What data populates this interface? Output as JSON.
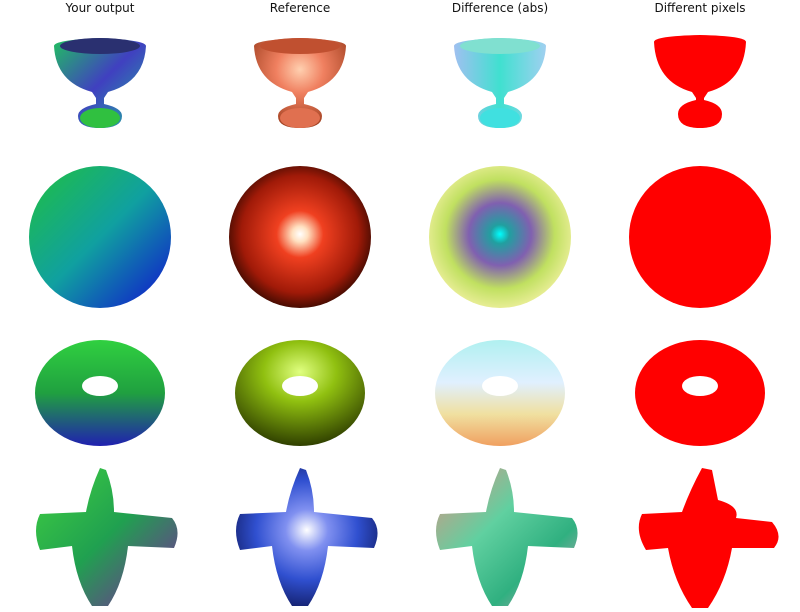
{
  "headers": {
    "output": "Your output",
    "reference": "Reference",
    "difference": "Difference (abs)",
    "different_pixels": "Different pixels"
  },
  "rows": [
    {
      "shape": "goblet-icon"
    },
    {
      "shape": "sphere-icon"
    },
    {
      "shape": "torus-icon"
    },
    {
      "shape": "airplane-icon"
    }
  ],
  "colors": {
    "mask_red": "#ff0000",
    "reference_goblet": "#f07850",
    "reference_sphere": "#e0301a",
    "reference_torus": "#8fbf10",
    "reference_airplane": "#3a5bd8"
  }
}
